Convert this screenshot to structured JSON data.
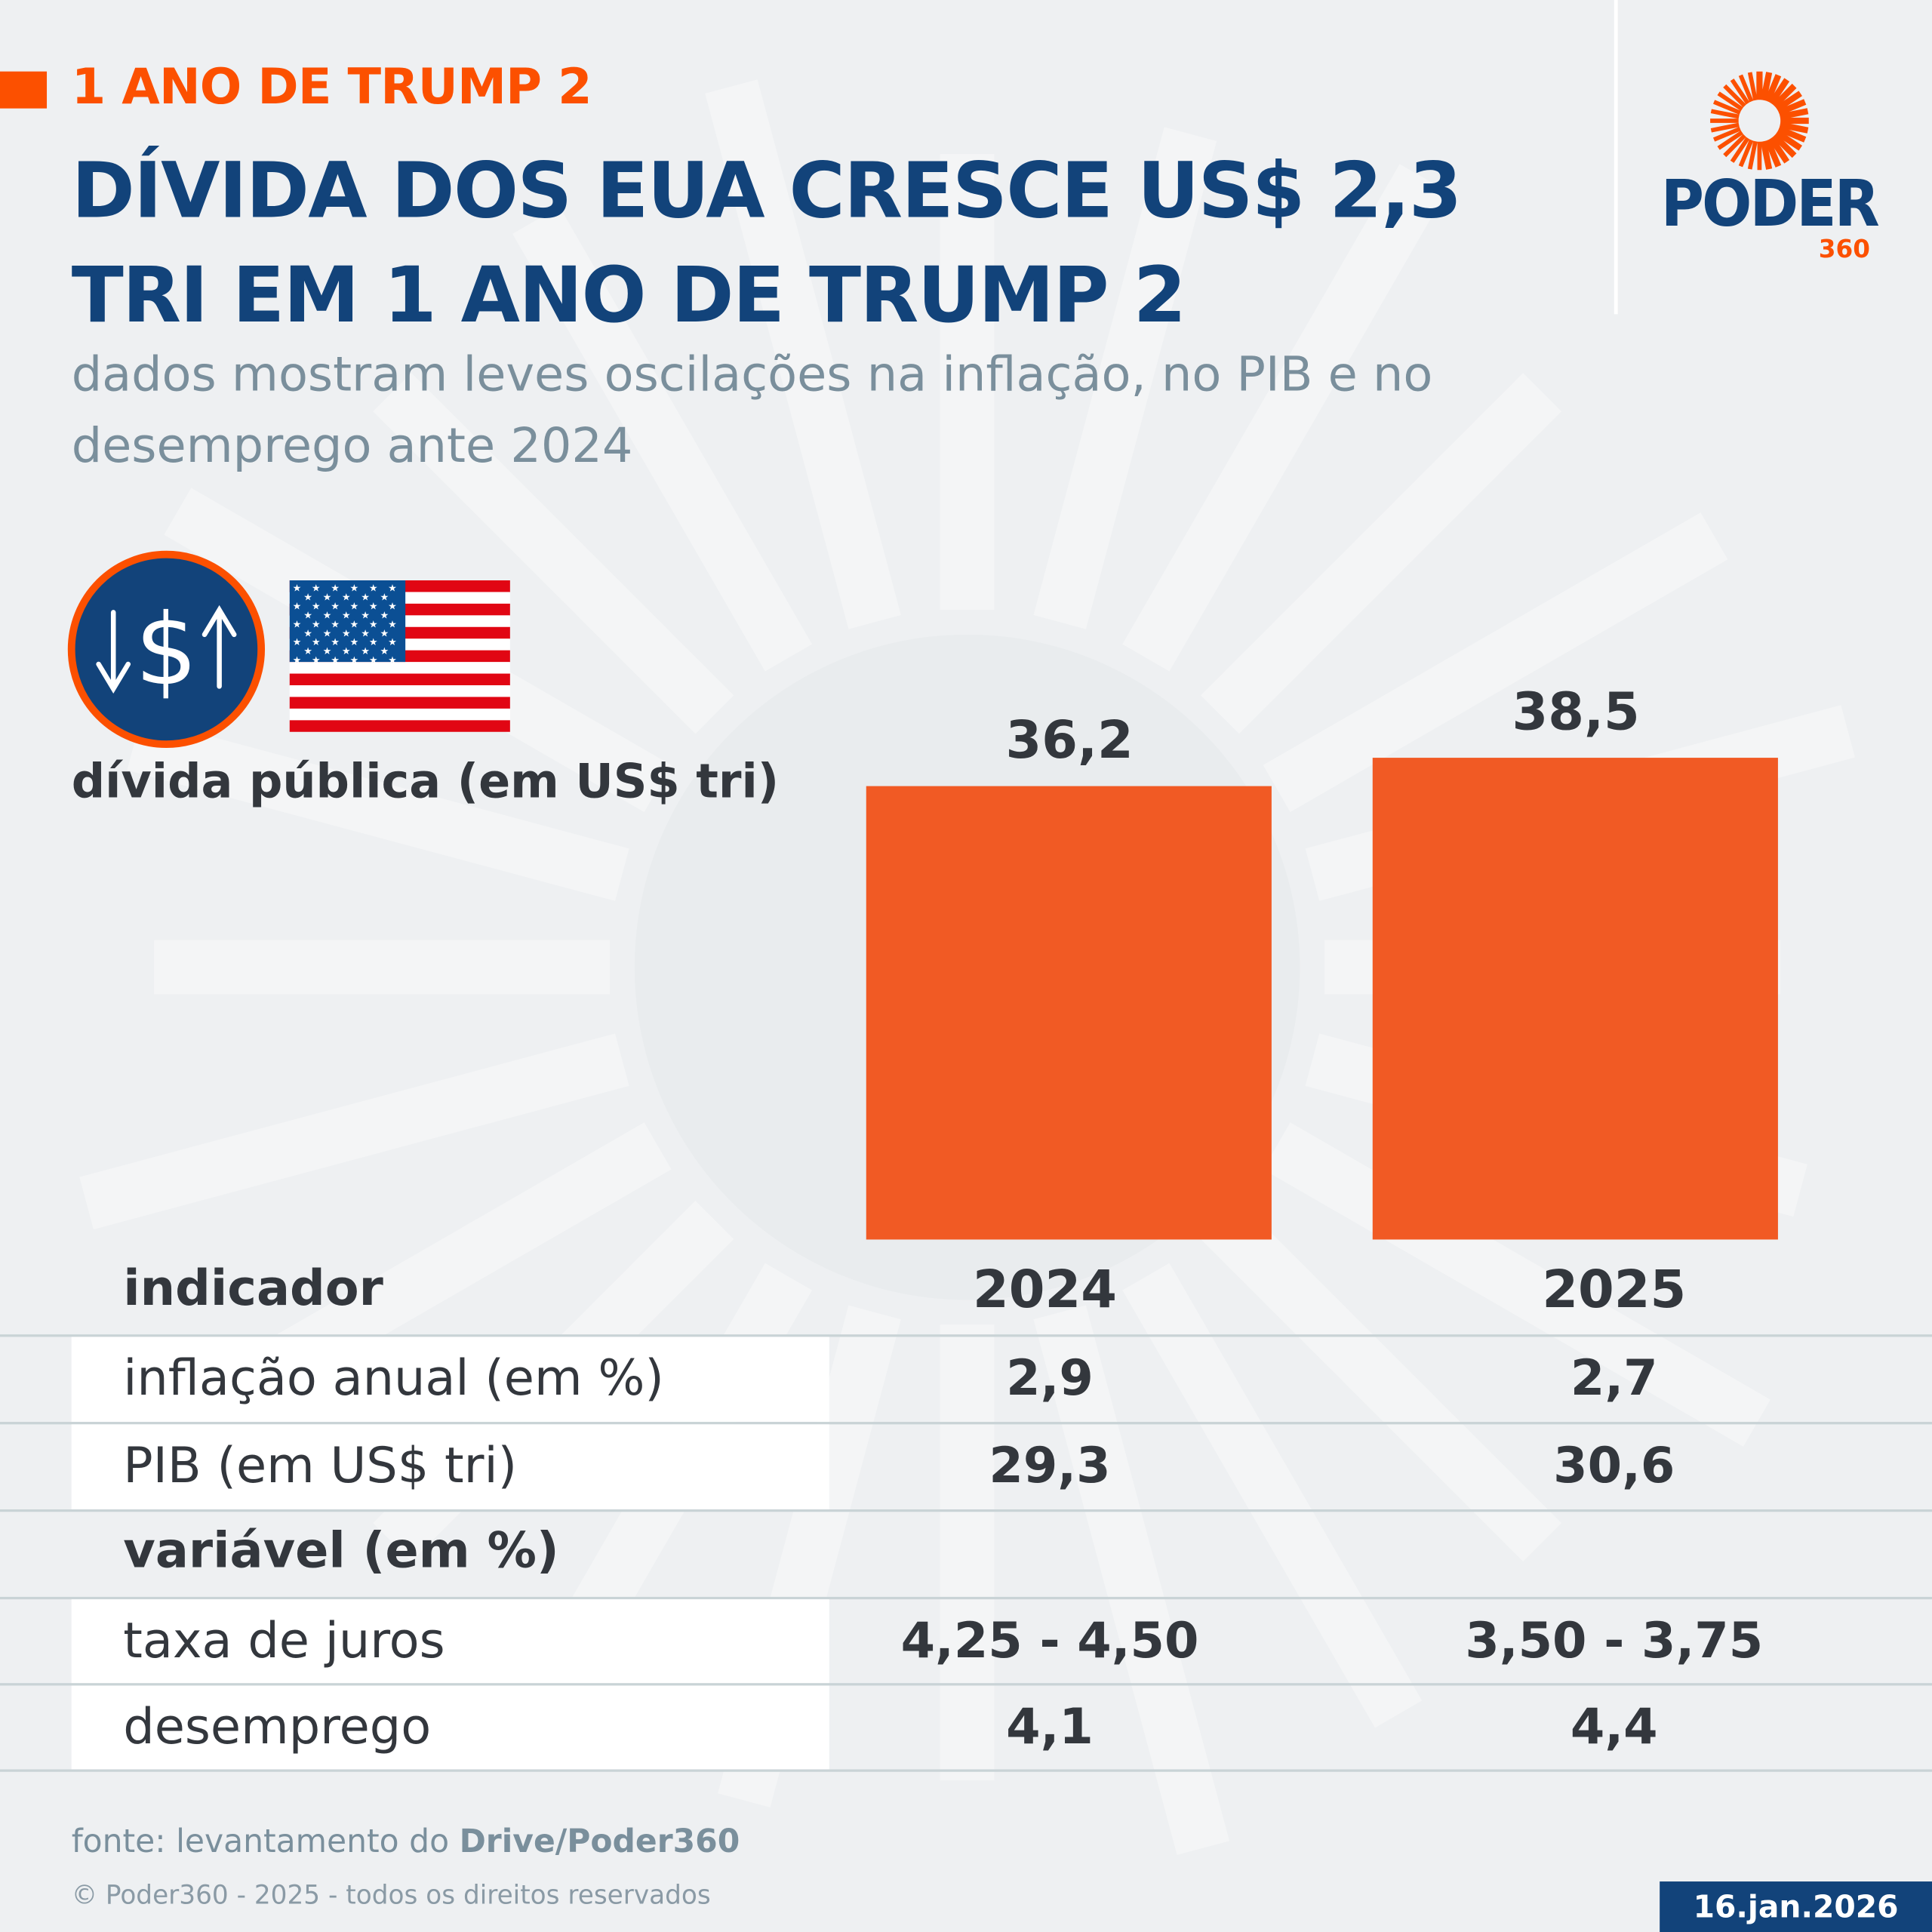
{
  "header": {
    "kicker": "1 ANO DE TRUMP 2",
    "title": "DÍVIDA DOS EUA CRESCE US$ 2,3 TRI EM 1 ANO DE TRUMP 2",
    "subtitle": "dados mostram leves oscilações na inflação, no PIB e no desemprego ante 2024"
  },
  "logo": {
    "name": "PODER",
    "suffix": "360",
    "icon": "sunburst-logo"
  },
  "icons": {
    "money": "dollar-up-down-icon",
    "flag": "us-flag-icon"
  },
  "colors": {
    "accent": "#fc5000",
    "bar": "#f15a24",
    "navy": "#12437a",
    "text": "#33373d"
  },
  "chart_data": {
    "type": "bar",
    "title": "dívida pública (em US$ tri)",
    "categories": [
      "2024",
      "2025"
    ],
    "values": [
      36.2,
      38.5
    ],
    "value_labels": [
      "36,2",
      "38,5"
    ],
    "ylim": [
      0,
      38.5
    ],
    "grid": false
  },
  "table": {
    "header": [
      "indicador",
      "2024",
      "2025"
    ],
    "rows": [
      {
        "label": "inflação anual (em %)",
        "v2024": "2,9",
        "v2025": "2,7"
      },
      {
        "label": "PIB (em US$ tri)",
        "v2024": "29,3",
        "v2025": "30,6"
      }
    ],
    "section": "variável (em %)",
    "rows2": [
      {
        "label": "taxa de juros",
        "v2024": "4,25 - 4,50",
        "v2025": "3,50 - 3,75"
      },
      {
        "label": "desemprego",
        "v2024": "4,1",
        "v2025": "4,4"
      }
    ]
  },
  "footer": {
    "source_prefix": "fonte: levantamento do ",
    "source_bold": "Drive/Poder360",
    "copyright": "© Poder360 - 2025 - todos os direitos reservados",
    "date": "16.jan.2026"
  }
}
